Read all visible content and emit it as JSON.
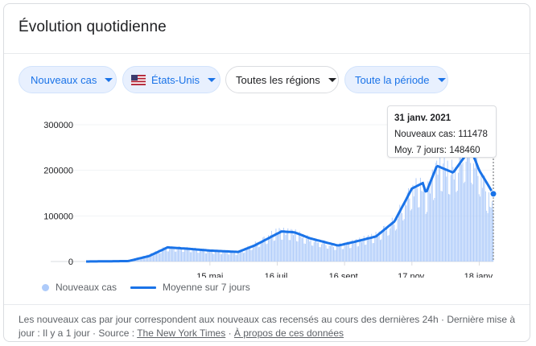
{
  "header": {
    "title": "Évolution quotidienne"
  },
  "filters": {
    "metric": "Nouveaux cas",
    "country": "États-Unis",
    "regions": "Toutes les régions",
    "period": "Toute la période"
  },
  "tooltip": {
    "date": "31 janv. 2021",
    "cases_label": "Nouveaux cas:",
    "cases_value": "111478",
    "avg_label": "Moy. 7 jours:",
    "avg_value": "148460"
  },
  "legend": {
    "bars": "Nouveaux cas",
    "line": "Moyenne sur 7 jours"
  },
  "footer": {
    "text": "Les nouveaux cas par jour correspondent aux nouveaux cas recensés au cours des dernières 24h · Dernière mise à jour : Il y a 1 jour · Source :",
    "source": "The New York Times",
    "sep": "·",
    "about": "À propos de ces données"
  },
  "colors": {
    "accent": "#1a73e8",
    "bars": "#aecbfa",
    "flag_red": "#b22234",
    "flag_blue": "#3c3b6e"
  },
  "icons": {
    "country": "us-flag-icon",
    "dropdown": "caret-down-icon"
  },
  "chart_data": {
    "type": "bar",
    "start_date": "2020-01-22",
    "end_date": "2021-01-31",
    "ylim": [
      0,
      300000
    ],
    "yticks": [
      0,
      100000,
      200000,
      300000
    ],
    "ytick_labels": [
      "0",
      "100000",
      "200000",
      "300000"
    ],
    "xticks": [
      {
        "label": "15 mai",
        "date": "2020-05-15"
      },
      {
        "label": "16 juil.",
        "date": "2020-07-16"
      },
      {
        "label": "16 sept.",
        "date": "2020-09-16"
      },
      {
        "label": "17 nov.",
        "date": "2020-11-17"
      },
      {
        "label": "18 janv.",
        "date": "2021-01-18"
      }
    ],
    "series": [
      {
        "name": "Nouveaux cas",
        "kind": "bars",
        "approx_daily_profile": [
          [
            "2020-01-22",
            0
          ],
          [
            "2020-03-01",
            100
          ],
          [
            "2020-03-20",
            15000
          ],
          [
            "2020-04-05",
            31000
          ],
          [
            "2020-04-25",
            29000
          ],
          [
            "2020-05-15",
            24000
          ],
          [
            "2020-06-10",
            20000
          ],
          [
            "2020-06-25",
            38000
          ],
          [
            "2020-07-16",
            67000
          ],
          [
            "2020-07-31",
            65000
          ],
          [
            "2020-08-15",
            50000
          ],
          [
            "2020-09-07",
            35000
          ],
          [
            "2020-09-20",
            40000
          ],
          [
            "2020-10-15",
            58000
          ],
          [
            "2020-11-01",
            90000
          ],
          [
            "2020-11-17",
            160000
          ],
          [
            "2020-11-27",
            168000
          ],
          [
            "2020-11-30",
            145000
          ],
          [
            "2020-12-12",
            218000
          ],
          [
            "2020-12-25",
            200000
          ],
          [
            "2021-01-08",
            255000
          ],
          [
            "2021-01-18",
            205000
          ],
          [
            "2021-01-31",
            111478
          ]
        ]
      },
      {
        "name": "Moyenne sur 7 jours",
        "kind": "line",
        "points": [
          [
            "2020-01-22",
            0
          ],
          [
            "2020-03-01",
            1000
          ],
          [
            "2020-03-20",
            12000
          ],
          [
            "2020-04-06",
            31000
          ],
          [
            "2020-04-25",
            28000
          ],
          [
            "2020-05-15",
            24000
          ],
          [
            "2020-06-10",
            21000
          ],
          [
            "2020-06-25",
            35000
          ],
          [
            "2020-07-20",
            66000
          ],
          [
            "2020-08-01",
            64000
          ],
          [
            "2020-08-15",
            51000
          ],
          [
            "2020-09-10",
            35000
          ],
          [
            "2020-09-25",
            43000
          ],
          [
            "2020-10-15",
            55000
          ],
          [
            "2020-11-01",
            88000
          ],
          [
            "2020-11-17",
            160000
          ],
          [
            "2020-11-27",
            172000
          ],
          [
            "2020-11-30",
            150000
          ],
          [
            "2020-12-10",
            210000
          ],
          [
            "2020-12-25",
            195000
          ],
          [
            "2021-01-10",
            248000
          ],
          [
            "2021-01-18",
            200000
          ],
          [
            "2021-01-31",
            148460
          ]
        ]
      }
    ],
    "highlight": {
      "date": "2021-01-31",
      "value": 148460
    }
  }
}
